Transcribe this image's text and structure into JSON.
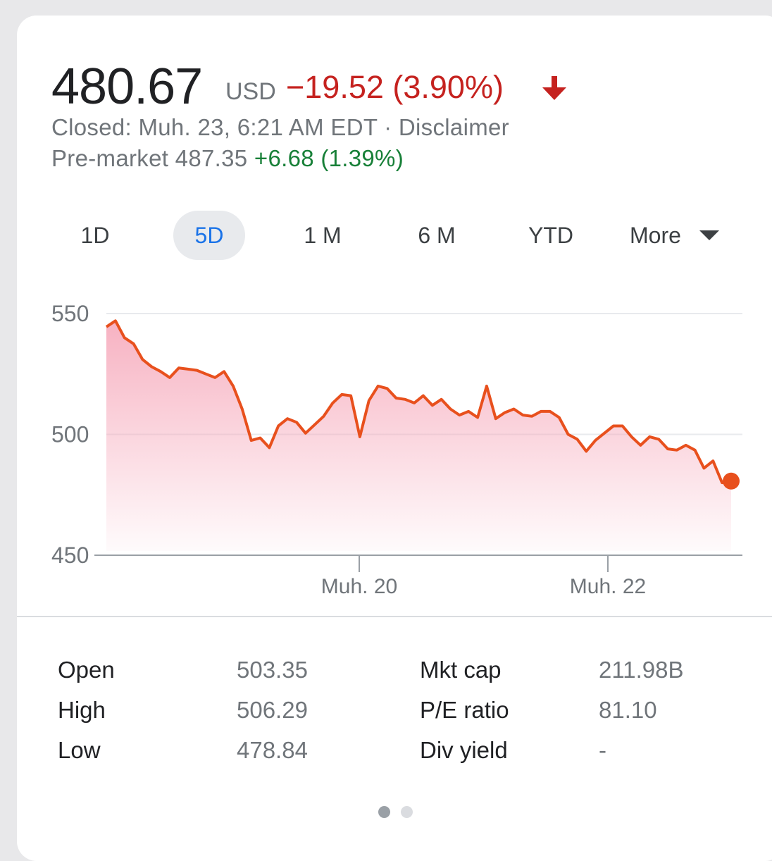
{
  "quote": {
    "price": "480.67",
    "currency": "USD",
    "change": "−19.52 (3.90%)",
    "status_prefix": "Closed: Muh. 23, 6:21 AM EDT · ",
    "disclaimer": "Disclaimer",
    "premarket_label": "Pre-market 487.35 ",
    "premarket_change": "+6.68 (1.39%)"
  },
  "tabs": [
    {
      "label": "1D",
      "active": false
    },
    {
      "label": "5D",
      "active": true
    },
    {
      "label": "1 M",
      "active": false
    },
    {
      "label": "6 M",
      "active": false
    },
    {
      "label": "YTD",
      "active": false
    },
    {
      "label": "More",
      "active": false
    }
  ],
  "colors": {
    "line": "#e8501d",
    "fill_top": "#f6a9bb",
    "negative": "#c5221f",
    "positive": "#188038",
    "active_tab": "#1a73e8"
  },
  "chart_data": {
    "type": "area",
    "x_tick_labels": [
      "Muh. 20",
      "Muh. 22"
    ],
    "y_ticks": [
      550,
      500,
      450
    ],
    "ylim": [
      450,
      550
    ],
    "grid": true,
    "values": [
      544.5,
      547,
      540,
      537.5,
      531,
      528,
      526,
      523.5,
      527.5,
      527,
      526.5,
      525,
      523.5,
      526,
      520,
      510.5,
      497.5,
      498.5,
      494.5,
      503.5,
      506.5,
      505,
      500.5,
      504,
      507.5,
      513,
      516.5,
      516,
      499,
      514,
      520,
      519,
      515,
      514.5,
      513,
      516,
      512,
      514.5,
      510.5,
      508,
      509.5,
      507,
      520,
      506.5,
      509,
      510.5,
      508,
      507.5,
      509.5,
      509.5,
      507,
      500,
      498,
      493,
      497.5,
      500.5,
      503.5,
      503.5,
      499,
      495.5,
      499,
      498,
      494,
      493.5,
      495.5,
      493.5,
      486,
      489,
      480,
      480.67
    ]
  },
  "stats": {
    "rows": [
      {
        "label": "Open",
        "value": "503.35",
        "label2": "Mkt cap",
        "value2": "211.98B"
      },
      {
        "label": "High",
        "value": "506.29",
        "label2": "P/E ratio",
        "value2": "81.10"
      },
      {
        "label": "Low",
        "value": "478.84",
        "label2": "Div yield",
        "value2": "-"
      }
    ]
  },
  "pager": {
    "pages": 2,
    "current": 1
  }
}
